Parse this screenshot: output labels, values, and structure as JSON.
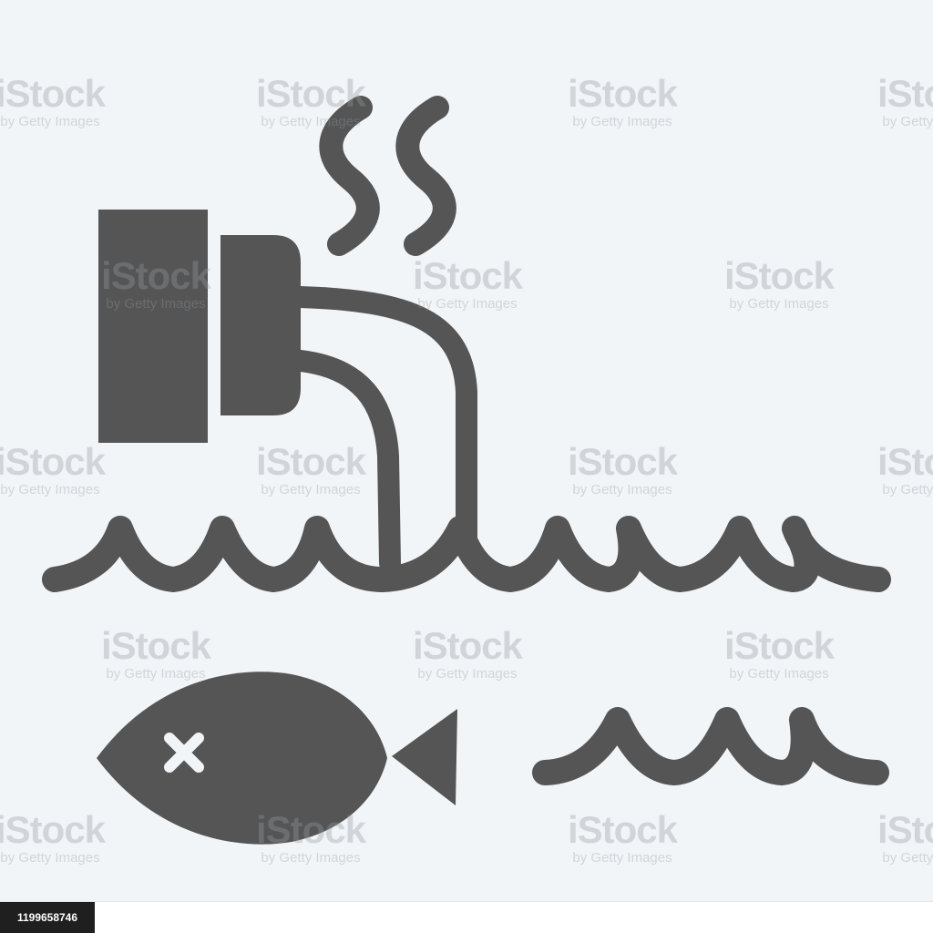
{
  "illustration": {
    "icon_name": "water-pollution-pipe-dead-fish-icon",
    "fill_color": "#555555",
    "background_color": "#f2f5f7",
    "eye_color": "#f2f5f7"
  },
  "watermark": {
    "brand": "iStock",
    "tagline": "by Getty Images"
  },
  "credit": {
    "image_number": "1199658746"
  }
}
